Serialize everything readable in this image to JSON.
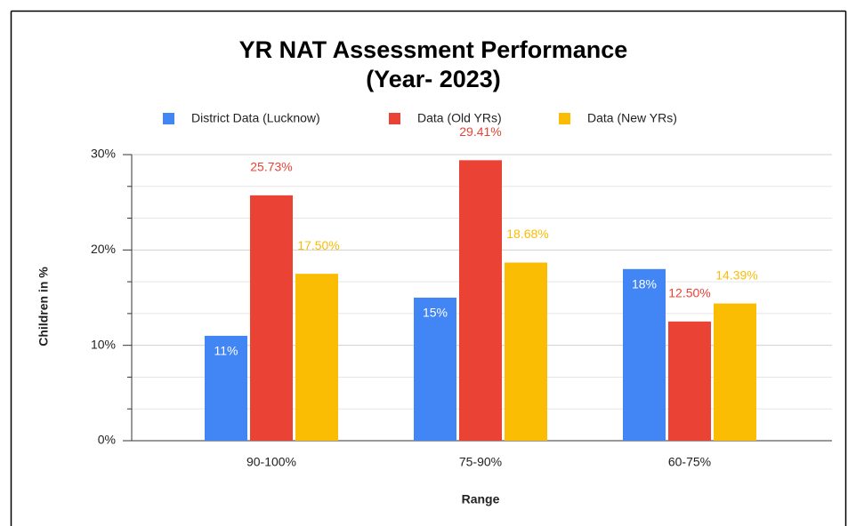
{
  "chart_data": {
    "type": "bar",
    "title": "YR NAT Assessment Performance",
    "subtitle": "(Year- 2023)",
    "x_label": "Range",
    "y_label": "Children in %",
    "categories": [
      "90-100%",
      "75-90%",
      "60-75%"
    ],
    "series": [
      {
        "name": "District Data (Lucknow)",
        "color": "#4285f4",
        "values": [
          11,
          15,
          18
        ],
        "value_labels": [
          "11%",
          "15%",
          "18%"
        ]
      },
      {
        "name": "Data (Old YRs)",
        "color": "#ea4335",
        "values": [
          25.73,
          29.41,
          12.5
        ],
        "value_labels": [
          "25.73%",
          "29.41%",
          "12.50%"
        ]
      },
      {
        "name": "Data (New YRs)",
        "color": "#fbbc04",
        "values": [
          17.5,
          18.68,
          14.39
        ],
        "value_labels": [
          "17.50%",
          "18.68%",
          "14.39%"
        ]
      }
    ],
    "ylim": [
      0,
      30
    ],
    "yticks": [
      {
        "value": 0,
        "label": "0%"
      },
      {
        "value": 10,
        "label": "10%"
      },
      {
        "value": 20,
        "label": "20%"
      },
      {
        "value": 30,
        "label": "30%"
      }
    ],
    "grid": true,
    "legend": "top"
  }
}
